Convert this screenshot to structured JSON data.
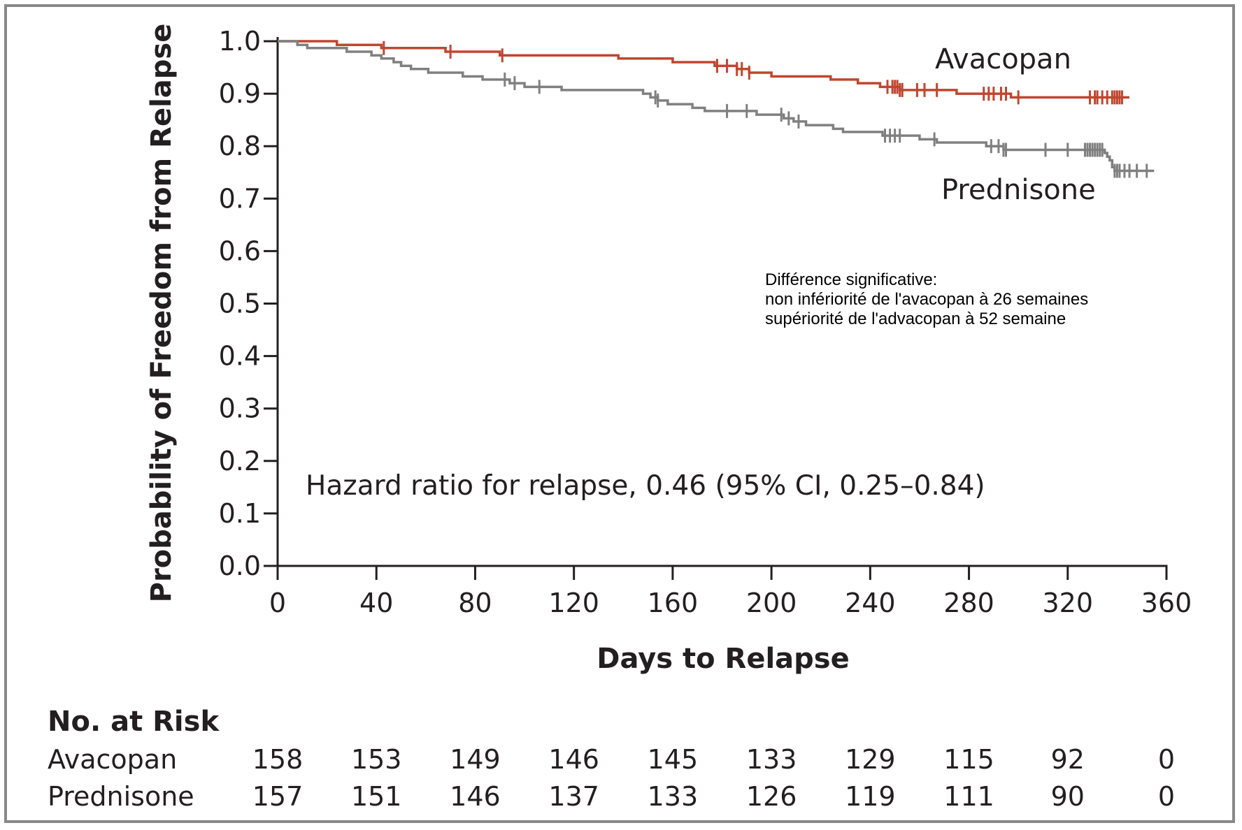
{
  "chart_data": {
    "type": "line",
    "subtype": "kaplan-meier",
    "xlabel": "Days to Relapse",
    "ylabel": "Probability of Freedom from Relapse",
    "xlim": [
      0,
      360
    ],
    "ylim": [
      0.0,
      1.0
    ],
    "x_ticks": [
      "0",
      "40",
      "80",
      "120",
      "160",
      "200",
      "240",
      "280",
      "320",
      "360"
    ],
    "y_ticks": [
      "0.0",
      "0.1",
      "0.2",
      "0.3",
      "0.4",
      "0.5",
      "0.6",
      "0.7",
      "0.8",
      "0.9",
      "1.0"
    ],
    "grid": false,
    "series": [
      {
        "name": "Avacopan",
        "color": "#c0462f",
        "steps": [
          [
            0,
            1.0
          ],
          [
            24,
            0.993
          ],
          [
            42,
            0.987
          ],
          [
            68,
            0.98
          ],
          [
            90,
            0.973
          ],
          [
            138,
            0.967
          ],
          [
            160,
            0.96
          ],
          [
            177,
            0.953
          ],
          [
            186,
            0.947
          ],
          [
            191,
            0.94
          ],
          [
            200,
            0.933
          ],
          [
            224,
            0.927
          ],
          [
            235,
            0.92
          ],
          [
            244,
            0.913
          ],
          [
            252,
            0.907
          ],
          [
            275,
            0.9
          ],
          [
            297,
            0.893
          ],
          [
            345,
            0.893
          ]
        ],
        "censor": [
          43,
          70,
          91,
          178,
          182,
          186,
          188,
          191,
          247,
          249,
          250,
          251,
          252,
          253,
          259,
          262,
          267,
          286,
          288,
          290,
          293,
          295,
          300,
          329,
          331,
          332,
          334,
          336,
          338,
          339,
          340,
          341,
          342
        ]
      },
      {
        "name": "Prednisone",
        "color": "#808080",
        "steps": [
          [
            0,
            1.0
          ],
          [
            8,
            0.993
          ],
          [
            12,
            0.987
          ],
          [
            28,
            0.98
          ],
          [
            38,
            0.973
          ],
          [
            42,
            0.967
          ],
          [
            47,
            0.96
          ],
          [
            50,
            0.953
          ],
          [
            54,
            0.947
          ],
          [
            61,
            0.94
          ],
          [
            75,
            0.933
          ],
          [
            83,
            0.927
          ],
          [
            94,
            0.92
          ],
          [
            100,
            0.913
          ],
          [
            115,
            0.907
          ],
          [
            148,
            0.9
          ],
          [
            151,
            0.893
          ],
          [
            154,
            0.887
          ],
          [
            158,
            0.88
          ],
          [
            168,
            0.873
          ],
          [
            173,
            0.867
          ],
          [
            194,
            0.86
          ],
          [
            205,
            0.853
          ],
          [
            209,
            0.847
          ],
          [
            214,
            0.84
          ],
          [
            225,
            0.833
          ],
          [
            229,
            0.827
          ],
          [
            245,
            0.82
          ],
          [
            260,
            0.813
          ],
          [
            267,
            0.807
          ],
          [
            287,
            0.8
          ],
          [
            294,
            0.793
          ],
          [
            335,
            0.787
          ],
          [
            336,
            0.78
          ],
          [
            337,
            0.773
          ],
          [
            338,
            0.76
          ],
          [
            339,
            0.753
          ],
          [
            355,
            0.753
          ]
        ],
        "censor": [
          92,
          96,
          106,
          153,
          154,
          182,
          190,
          204,
          207,
          211,
          246,
          248,
          250,
          252,
          266,
          289,
          292,
          294,
          295,
          311,
          320,
          327,
          328,
          329,
          330,
          331,
          332,
          333,
          334,
          339,
          340,
          341,
          343,
          345,
          348,
          352
        ]
      }
    ],
    "annotations": {
      "hazard_ratio": "Hazard ratio for relapse, 0.46 (95% CI, 0.25–0.84)",
      "note_lines": [
        "Différence significative:",
        "non infériorité de l'avacopan à 26 semaines",
        "supériorité de l'advacopan à 52 semaine"
      ]
    },
    "number_at_risk": {
      "title": "No. at Risk",
      "rows": [
        {
          "label": "Avacopan",
          "values": [
            "158",
            "153",
            "149",
            "146",
            "145",
            "133",
            "129",
            "115",
            "92",
            "0"
          ]
        },
        {
          "label": "Prednisone",
          "values": [
            "157",
            "151",
            "146",
            "137",
            "133",
            "126",
            "119",
            "111",
            "90",
            "0"
          ]
        }
      ]
    }
  }
}
